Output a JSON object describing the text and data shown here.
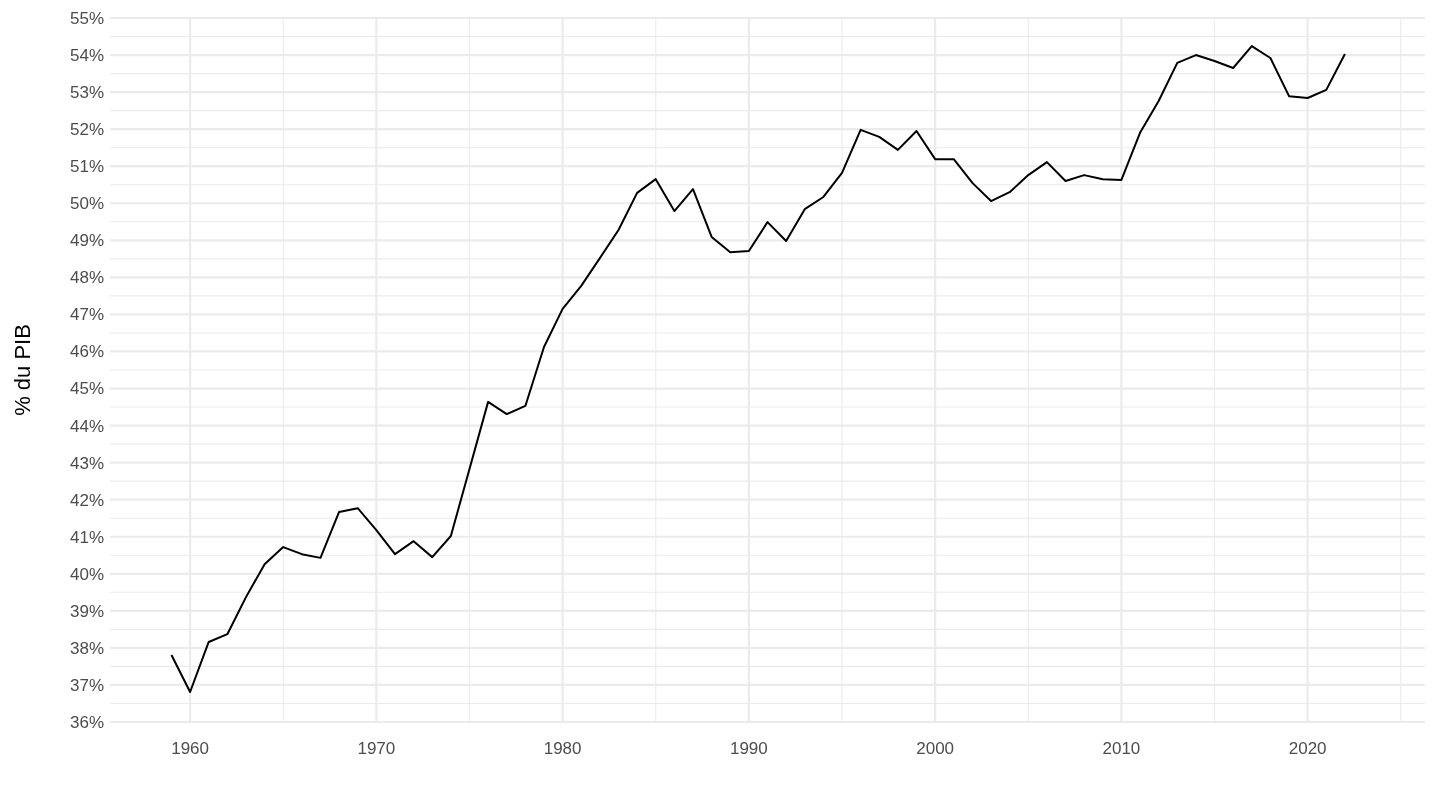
{
  "chart_data": {
    "type": "line",
    "ylabel": "% du PIB",
    "x": [
      1959,
      1960,
      1961,
      1962,
      1963,
      1964,
      1965,
      1966,
      1967,
      1968,
      1969,
      1970,
      1971,
      1972,
      1973,
      1974,
      1975,
      1976,
      1977,
      1978,
      1979,
      1980,
      1981,
      1982,
      1983,
      1984,
      1985,
      1986,
      1987,
      1988,
      1989,
      1990,
      1991,
      1992,
      1993,
      1994,
      1995,
      1996,
      1997,
      1998,
      1999,
      2000,
      2001,
      2002,
      2003,
      2004,
      2005,
      2006,
      2007,
      2008,
      2009,
      2010,
      2011,
      2012,
      2013,
      2014,
      2015,
      2016,
      2017,
      2018,
      2019,
      2020,
      2021,
      2022
    ],
    "series": [
      {
        "color": "#000000",
        "values": [
          37.81,
          36.81,
          38.16,
          38.37,
          39.37,
          40.26,
          40.72,
          40.53,
          40.43,
          41.67,
          41.77,
          41.18,
          40.53,
          40.88,
          40.45,
          41.02,
          42.83,
          44.64,
          44.31,
          44.53,
          46.12,
          47.15,
          47.77,
          48.52,
          49.28,
          50.28,
          50.65,
          49.79,
          50.38,
          49.09,
          48.68,
          48.71,
          49.49,
          48.98,
          49.84,
          50.17,
          50.82,
          51.98,
          51.79,
          51.44,
          51.95,
          51.19,
          51.19,
          50.55,
          50.06,
          50.3,
          50.76,
          51.11,
          50.6,
          50.76,
          50.65,
          50.63,
          51.9,
          52.76,
          53.79,
          54.0,
          53.84,
          53.65,
          54.24,
          53.92,
          52.89,
          52.84,
          53.06,
          54.03
        ]
      }
    ],
    "xlim": [
      1955.7,
      2026.3
    ],
    "xticks": [
      1960,
      {
        "value": 1965,
        "label": null
      },
      1970,
      {
        "value": 1975,
        "label": null
      },
      1980,
      {
        "value": 1985,
        "label": null
      },
      1990,
      {
        "value": 1995,
        "label": null
      },
      2000,
      {
        "value": 2005,
        "label": null
      },
      2010,
      {
        "value": 2015,
        "label": null
      },
      2020,
      {
        "value": 2025,
        "label": null
      }
    ],
    "ylim": [
      36,
      55
    ],
    "yticks": [
      {
        "value": 36,
        "label": "36%"
      },
      {
        "value": 37,
        "label": "37%"
      },
      {
        "value": 38,
        "label": "38%"
      },
      {
        "value": 39,
        "label": "39%"
      },
      {
        "value": 40,
        "label": "40%"
      },
      {
        "value": 41,
        "label": "41%"
      },
      {
        "value": 42,
        "label": "42%"
      },
      {
        "value": 43,
        "label": "43%"
      },
      {
        "value": 44,
        "label": "44%"
      },
      {
        "value": 45,
        "label": "45%"
      },
      {
        "value": 46,
        "label": "46%"
      },
      {
        "value": 47,
        "label": "47%"
      },
      {
        "value": 48,
        "label": "48%"
      },
      {
        "value": 49,
        "label": "49%"
      },
      {
        "value": 50,
        "label": "50%"
      },
      {
        "value": 51,
        "label": "51%"
      },
      {
        "value": 52,
        "label": "52%"
      },
      {
        "value": 53,
        "label": "53%"
      },
      {
        "value": 54,
        "label": "54%"
      },
      {
        "value": 55,
        "label": "55%"
      }
    ],
    "grid": true,
    "line_style": "solid"
  }
}
